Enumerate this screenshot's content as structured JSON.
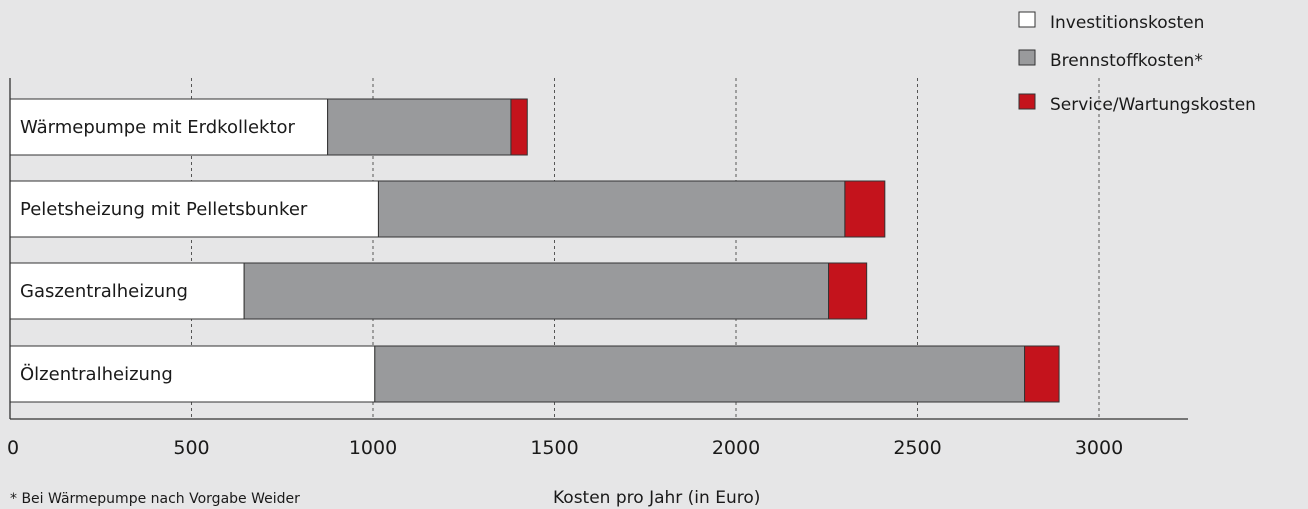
{
  "chart_data": {
    "type": "bar",
    "orientation": "horizontal",
    "stacked": true,
    "categories": [
      "Wärmepumpe mit Erdkollektor",
      "Peletsheizung mit Pelletsbunker",
      "Gaszentralheizung",
      "Ölzentralheizung"
    ],
    "series": [
      {
        "name": "Investitionskosten",
        "color": "#ffffff",
        "values": [
          875,
          1015,
          645,
          1005
        ]
      },
      {
        "name": "Brennstoffkosten*",
        "color": "#999a9c",
        "values": [
          505,
          1285,
          1610,
          1790
        ]
      },
      {
        "name": "Service/Wartungskosten",
        "color": "#c4131c",
        "values": [
          45,
          110,
          105,
          95
        ]
      }
    ],
    "xlim": [
      0,
      3250
    ],
    "xticks": [
      0,
      500,
      1000,
      1500,
      2000,
      2500,
      3000
    ],
    "tick_labels": [
      "0",
      "500",
      "1000",
      "1500",
      "2000",
      "2500",
      "3000"
    ],
    "xlabel": "Kosten pro Jahr (in Euro)",
    "footnote": "* Bei Wärmepumpe nach Vorgabe Weider",
    "grid": "vertical dashed",
    "legend_position": "top-right"
  }
}
